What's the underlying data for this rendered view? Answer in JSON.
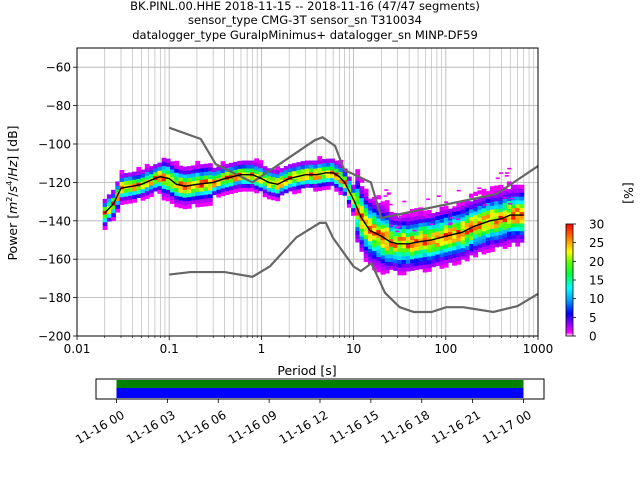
{
  "title": {
    "line1": "BK.PINL.00.HHE   2018-11-15 -- 2018-11-16  (47/47 segments)",
    "line2": "sensor_type CMG-3T sensor_sn T310034",
    "line3": "datalogger_type GuralpMinimus+ datalogger_sn MINP-DF59"
  },
  "chart_data": [
    {
      "type": "heatmap",
      "title": "BK.PINL.00.HHE   2018-11-15 -- 2018-11-16  (47/47 segments)",
      "xlabel": "Period [s]",
      "ylabel_parts": [
        "Power [",
        "m",
        "2",
        "/",
        "s",
        "4",
        "/",
        "Hz",
        "] [dB]"
      ],
      "xscale": "log",
      "xlim": [
        0.01,
        1000
      ],
      "ylim": [
        -200,
        -50
      ],
      "xticks": [
        0.01,
        0.1,
        1,
        10,
        100,
        1000
      ],
      "xtick_labels": [
        "0.01",
        "0.1",
        "1",
        "10",
        "100",
        "1000"
      ],
      "yticks": [
        -200,
        -180,
        -160,
        -140,
        -120,
        -100,
        -80,
        -60
      ],
      "ytick_labels": [
        "−200",
        "−180",
        "−160",
        "−140",
        "−120",
        "−100",
        "−80",
        "−60"
      ],
      "grid": true,
      "colors": {
        "nlnm_nhnm": "#666666",
        "mean": "#000000",
        "grid": "#b0b0b0"
      },
      "nhnm": {
        "name": "NHNM",
        "x": [
          0.1,
          0.22,
          0.32,
          0.8,
          3.8,
          4.6,
          6.3,
          7.9,
          15.4,
          20,
          354.8,
          1000
        ],
        "y": [
          -91.5,
          -97.4,
          -110.5,
          -120,
          -98,
          -96.5,
          -101,
          -113.5,
          -120,
          -138.5,
          -126,
          -111.5
        ]
      },
      "nlnm": {
        "name": "NLNM",
        "x": [
          0.1,
          0.17,
          0.4,
          0.8,
          1.24,
          2.4,
          4.3,
          5,
          6,
          10,
          12,
          15.6,
          21.9,
          31.6,
          45,
          70,
          101,
          154,
          328,
          600,
          1000
        ],
        "y": [
          -168,
          -166.7,
          -166.7,
          -169.2,
          -163.7,
          -148.6,
          -141.1,
          -141.1,
          -149,
          -163.8,
          -166.2,
          -162.1,
          -177.5,
          -185,
          -187.5,
          -187.5,
          -185,
          -185,
          -187.5,
          -184.4,
          -178
        ],
        "domain_note": ""
      },
      "mean_curve": {
        "x": [
          0.02,
          0.025,
          0.03,
          0.04,
          0.05,
          0.07,
          0.08,
          0.1,
          0.12,
          0.15,
          0.2,
          0.3,
          0.4,
          0.6,
          0.8,
          1.0,
          1.2,
          1.5,
          2,
          3,
          4,
          5,
          6,
          7,
          8,
          10,
          12,
          15,
          20,
          25,
          30,
          40,
          50,
          70,
          100,
          150,
          200,
          300,
          400,
          500,
          700
        ],
        "y": [
          -136,
          -131,
          -123,
          -122,
          -121,
          -118,
          -117,
          -118,
          -121,
          -122,
          -121,
          -120,
          -118,
          -116,
          -116,
          -118,
          -120,
          -121,
          -118,
          -116,
          -116,
          -115,
          -115,
          -117,
          -120,
          -129,
          -138,
          -145,
          -148,
          -151,
          -152,
          -152,
          -151,
          -150,
          -148,
          -146,
          -143,
          -140,
          -139,
          -137,
          -137
        ]
      },
      "colorbar": {
        "label": "[%]",
        "min": 0,
        "max": 30,
        "ticks": [
          0,
          5,
          10,
          15,
          20,
          25,
          30
        ],
        "tick_labels": [
          "0",
          "5",
          "10",
          "15",
          "20",
          "25",
          "30"
        ],
        "colormap": "pqlx"
      }
    },
    {
      "type": "bar",
      "title": "",
      "xlabel": "",
      "ylabel": "",
      "x_start": "2018-11-16 00:00",
      "x_end": "2018-11-17 00:00",
      "tick_labels": [
        "11-16 00",
        "11-16 03",
        "11-16 06",
        "11-16 09",
        "11-16 12",
        "11-16 15",
        "11-16 18",
        "11-16 21",
        "11-17 00"
      ],
      "series": [
        {
          "coverage_start_hours": 0,
          "coverage_end_hours": 24,
          "color": "#008000",
          "role": "data availability"
        },
        {
          "coverage_start_hours": 0,
          "coverage_end_hours": 24,
          "color": "#0000ff",
          "role": "psd segments"
        }
      ]
    }
  ]
}
